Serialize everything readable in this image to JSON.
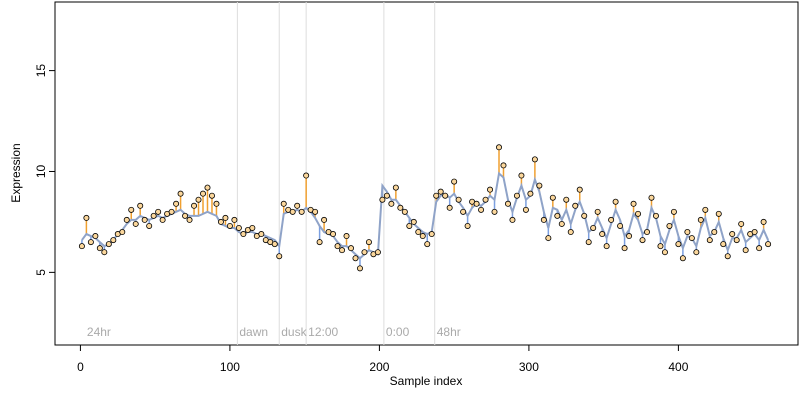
{
  "chart_data": {
    "type": "residual_scatter",
    "x_label": "Sample index",
    "y_label": "Expression",
    "xlim": [
      -17,
      480
    ],
    "ylim": [
      1.4,
      18.4
    ],
    "xticks": [
      0,
      100,
      200,
      300,
      400
    ],
    "yticks": [
      5,
      10,
      15
    ],
    "vlines": [
      105,
      133,
      151,
      203,
      237
    ],
    "annotations": [
      {
        "x": 3,
        "label": "24hr"
      },
      {
        "x": 105,
        "label": "dawn"
      },
      {
        "x": 133,
        "label": "dusk"
      },
      {
        "x": 151,
        "label": "12:00"
      },
      {
        "x": 203,
        "label": "0:00"
      },
      {
        "x": 237,
        "label": "48hr"
      }
    ],
    "annotation_y": 2.0,
    "point_fill": "#fbd79c",
    "point_stroke": "#000000",
    "line_color": "#8fa3c8",
    "above_color": "#f0a030",
    "below_color": "#7b9fe0",
    "vline_color": "#dddddd",
    "x": [
      1,
      4,
      7,
      10,
      13,
      16,
      19,
      22,
      25,
      28,
      31,
      34,
      37,
      40,
      43,
      46,
      49,
      52,
      55,
      58,
      61,
      64,
      67,
      70,
      73,
      76,
      79,
      82,
      85,
      88,
      91,
      94,
      97,
      100,
      103,
      106,
      109,
      112,
      115,
      118,
      121,
      124,
      127,
      130,
      133,
      136,
      139,
      142,
      145,
      148,
      151,
      154,
      157,
      160,
      163,
      166,
      169,
      172,
      175,
      178,
      181,
      184,
      187,
      190,
      193,
      196,
      199,
      202,
      205,
      208,
      211,
      214,
      217,
      220,
      223,
      226,
      229,
      232,
      235,
      238,
      241,
      244,
      247,
      250,
      253,
      256,
      259,
      262,
      265,
      268,
      271,
      274,
      277,
      280,
      283,
      286,
      289,
      292,
      295,
      298,
      301,
      304,
      307,
      310,
      313,
      316,
      319,
      322,
      325,
      328,
      331,
      334,
      337,
      340,
      343,
      346,
      349,
      352,
      355,
      358,
      361,
      364,
      367,
      370,
      373,
      376,
      379,
      382,
      385,
      388,
      391,
      394,
      397,
      400,
      403,
      406,
      409,
      412,
      415,
      418,
      421,
      424,
      427,
      430,
      433,
      436,
      439,
      442,
      445,
      448,
      451,
      454,
      457,
      460
    ],
    "values": [
      6.3,
      7.7,
      6.5,
      6.8,
      6.2,
      6.0,
      6.4,
      6.6,
      6.9,
      7.0,
      7.6,
      8.1,
      7.4,
      8.3,
      7.6,
      7.3,
      7.8,
      8.0,
      7.6,
      7.9,
      8.0,
      8.4,
      8.9,
      7.8,
      7.6,
      8.3,
      8.6,
      8.9,
      9.2,
      8.8,
      8.4,
      7.5,
      7.7,
      7.3,
      7.6,
      7.2,
      6.9,
      7.1,
      7.2,
      6.8,
      6.9,
      6.6,
      6.5,
      6.4,
      5.8,
      8.4,
      8.1,
      8.0,
      8.3,
      8.0,
      9.8,
      8.1,
      8.0,
      6.5,
      7.6,
      7.0,
      6.9,
      6.3,
      6.1,
      6.8,
      6.2,
      5.7,
      5.2,
      6.0,
      6.5,
      5.9,
      6.0,
      8.6,
      8.8,
      8.4,
      9.2,
      8.2,
      8.0,
      7.3,
      7.5,
      7.0,
      6.8,
      6.4,
      6.9,
      8.8,
      9.0,
      8.8,
      8.2,
      9.5,
      8.6,
      8.0,
      7.3,
      8.5,
      8.4,
      8.1,
      8.6,
      9.1,
      8.0,
      11.2,
      10.3,
      8.4,
      7.6,
      8.8,
      9.8,
      8.1,
      8.9,
      10.6,
      9.3,
      7.6,
      6.7,
      8.7,
      7.8,
      7.4,
      8.6,
      7.0,
      8.3,
      9.1,
      7.8,
      6.5,
      7.2,
      8.0,
      6.9,
      6.3,
      7.6,
      8.5,
      7.3,
      6.2,
      6.8,
      8.4,
      7.9,
      6.6,
      7.0,
      8.7,
      7.8,
      6.3,
      6.0,
      7.3,
      8.0,
      6.4,
      5.7,
      7.0,
      6.7,
      6.0,
      7.6,
      8.1,
      6.6,
      7.0,
      7.9,
      6.4,
      5.8,
      6.9,
      6.6,
      7.4,
      6.1,
      6.9,
      7.0,
      6.2,
      7.5,
      6.4
    ],
    "fit": [
      6.6,
      6.9,
      6.8,
      6.7,
      6.5,
      6.3,
      6.4,
      6.6,
      6.9,
      7.1,
      7.4,
      7.6,
      7.6,
      7.8,
      7.7,
      7.6,
      7.7,
      7.8,
      7.7,
      7.8,
      7.9,
      8.0,
      8.1,
      7.9,
      7.8,
      7.8,
      7.8,
      7.9,
      8.0,
      7.9,
      7.8,
      7.4,
      7.3,
      7.2,
      7.2,
      7.0,
      6.9,
      7.0,
      7.0,
      6.9,
      6.9,
      6.8,
      6.7,
      6.6,
      6.3,
      7.9,
      8.0,
      8.0,
      8.1,
      8.0,
      8.2,
      8.0,
      7.7,
      7.3,
      7.0,
      6.9,
      6.8,
      6.5,
      6.3,
      6.3,
      6.1,
      5.9,
      5.7,
      5.9,
      6.1,
      6.0,
      5.9,
      9.3,
      9.0,
      8.6,
      8.6,
      8.3,
      8.0,
      7.7,
      7.4,
      7.2,
      7.0,
      6.9,
      7.0,
      8.5,
      8.8,
      8.9,
      8.7,
      8.9,
      8.5,
      8.2,
      7.8,
      8.2,
      8.4,
      8.3,
      8.5,
      8.8,
      8.6,
      9.9,
      9.7,
      8.6,
      8.0,
      8.7,
      9.3,
      8.6,
      8.8,
      9.6,
      9.0,
      8.0,
      7.2,
      8.2,
      8.1,
      7.6,
      8.1,
      7.4,
      8.1,
      8.5,
      7.9,
      7.0,
      7.2,
      7.7,
      7.2,
      6.7,
      7.4,
      8.1,
      7.6,
      6.8,
      7.1,
      7.9,
      7.6,
      6.9,
      7.1,
      8.2,
      7.7,
      6.8,
      6.4,
      7.1,
      7.6,
      6.8,
      6.2,
      6.8,
      6.7,
      6.3,
      7.2,
      7.7,
      6.8,
      7.0,
      7.5,
      6.7,
      6.1,
      6.7,
      6.7,
      7.1,
      6.5,
      6.7,
      6.9,
      6.6,
      7.1,
      6.6
    ]
  }
}
